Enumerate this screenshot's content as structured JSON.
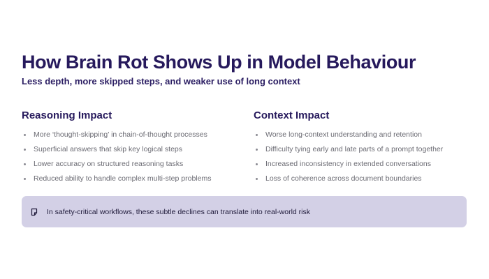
{
  "slide": {
    "title": "How Brain Rot Shows Up in Model Behaviour",
    "subtitle": "Less depth, more skipped steps, and weaker use of long context"
  },
  "columns": [
    {
      "heading": "Reasoning Impact",
      "bullets": [
        "More ‘thought-skipping’ in chain-of-thought processes",
        "Superficial answers that skip key logical steps",
        "Lower accuracy on structured reasoning tasks",
        "Reduced ability to handle complex multi-step problems"
      ]
    },
    {
      "heading": "Context Impact",
      "bullets": [
        "Worse long-context understanding and retention",
        "Difficulty tying early and late parts of a prompt together",
        "Increased inconsistency in extended conversations",
        "Loss of coherence across document boundaries"
      ]
    }
  ],
  "callout": {
    "icon": "note-icon",
    "text": "In safety-critical workflows, these subtle declines can translate into real-world risk"
  },
  "colors": {
    "heading": "#26195c",
    "body_text": "#6b6b73",
    "callout_background": "#d3d0e6",
    "background": "#ffffff"
  }
}
